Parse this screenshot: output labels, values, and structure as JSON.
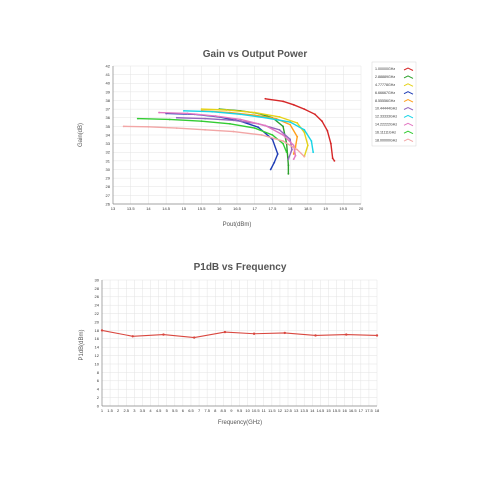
{
  "colors": {
    "grid": "#e3e3e3",
    "axis": "#888888",
    "title": "#555555"
  },
  "chart_data": [
    {
      "type": "line",
      "title": "Gain vs Output Power",
      "xlabel": "Pout(dBm)",
      "ylabel": "Gain(dB)",
      "xlim": [
        13,
        20
      ],
      "ylim": [
        26,
        42
      ],
      "x_ticks": [
        "13",
        "13.5",
        "14",
        "14.5",
        "15",
        "15.5",
        "16",
        "16.5",
        "17",
        "17.5",
        "18",
        "18.5",
        "19",
        "19.5",
        "20"
      ],
      "y_ticks": [
        "26",
        "27",
        "28",
        "29",
        "30",
        "31",
        "32",
        "33",
        "34",
        "35",
        "36",
        "37",
        "38",
        "39",
        "40",
        "41",
        "42"
      ],
      "legend_position": "right",
      "series": [
        {
          "name": "1.00000GHz",
          "color": "#d62728",
          "points": [
            [
              17.3,
              38.2
            ],
            [
              17.8,
              37.9
            ],
            [
              18.1,
              37.5
            ],
            [
              18.4,
              37.0
            ],
            [
              18.7,
              36.4
            ],
            [
              18.9,
              35.6
            ],
            [
              19.05,
              34.5
            ],
            [
              19.15,
              33.0
            ],
            [
              19.2,
              31.3
            ],
            [
              19.25,
              31.0
            ]
          ]
        },
        {
          "name": "2.88889GHz",
          "color": "#2ca02c",
          "points": [
            [
              16.0,
              37.0
            ],
            [
              16.6,
              36.8
            ],
            [
              17.1,
              36.5
            ],
            [
              17.5,
              36.0
            ],
            [
              17.8,
              35.0
            ],
            [
              17.9,
              33.0
            ],
            [
              17.95,
              30.5
            ],
            [
              17.95,
              29.5
            ]
          ]
        },
        {
          "name": "4.77778GHz",
          "color": "#e5d21a",
          "points": [
            [
              15.5,
              37.0
            ],
            [
              16.2,
              36.9
            ],
            [
              17.0,
              36.6
            ],
            [
              17.7,
              36.1
            ],
            [
              18.2,
              35.4
            ],
            [
              18.4,
              34.3
            ],
            [
              18.5,
              32.8
            ],
            [
              18.4,
              31.5
            ]
          ]
        },
        {
          "name": "6.66667GHz",
          "color": "#1f3db5",
          "points": [
            [
              14.5,
              36.5
            ],
            [
              15.3,
              36.4
            ],
            [
              16.0,
              36.1
            ],
            [
              16.6,
              35.6
            ],
            [
              17.1,
              34.9
            ],
            [
              17.5,
              33.5
            ],
            [
              17.65,
              31.8
            ],
            [
              17.55,
              30.8
            ],
            [
              17.45,
              30.0
            ]
          ]
        },
        {
          "name": "8.55556GHz",
          "color": "#ff9f1c",
          "points": [
            [
              15.5,
              36.8
            ],
            [
              16.3,
              36.6
            ],
            [
              17.0,
              36.3
            ],
            [
              17.6,
              35.9
            ],
            [
              18.0,
              35.2
            ],
            [
              18.2,
              33.8
            ],
            [
              18.15,
              32.6
            ],
            [
              18.1,
              31.8
            ]
          ]
        },
        {
          "name": "10.44444GHz",
          "color": "#9467bd",
          "points": [
            [
              14.8,
              36.0
            ],
            [
              15.6,
              35.9
            ],
            [
              16.4,
              35.7
            ],
            [
              17.1,
              35.3
            ],
            [
              17.7,
              34.6
            ],
            [
              18.0,
              33.5
            ],
            [
              18.05,
              32.3
            ],
            [
              17.95,
              31.2
            ]
          ]
        },
        {
          "name": "12.33333GHz",
          "color": "#17d4e6",
          "points": [
            [
              15.0,
              36.8
            ],
            [
              15.8,
              36.7
            ],
            [
              16.6,
              36.4
            ],
            [
              17.3,
              36.0
            ],
            [
              18.0,
              35.5
            ],
            [
              18.4,
              34.6
            ],
            [
              18.6,
              33.3
            ],
            [
              18.65,
              32.0
            ]
          ]
        },
        {
          "name": "14.22222GHz",
          "color": "#e377c2",
          "points": [
            [
              14.3,
              36.6
            ],
            [
              15.1,
              36.5
            ],
            [
              15.9,
              36.2
            ],
            [
              16.6,
              35.8
            ],
            [
              17.3,
              35.1
            ],
            [
              17.8,
              34.0
            ],
            [
              18.1,
              32.8
            ],
            [
              18.15,
              31.6
            ],
            [
              18.1,
              31.2
            ]
          ]
        },
        {
          "name": "16.11111GHz",
          "color": "#33cc33",
          "points": [
            [
              13.7,
              35.9
            ],
            [
              14.6,
              35.8
            ],
            [
              15.5,
              35.6
            ],
            [
              16.3,
              35.3
            ],
            [
              17.0,
              34.8
            ],
            [
              17.5,
              34.0
            ],
            [
              17.8,
              33.0
            ],
            [
              17.9,
              32.0
            ]
          ]
        },
        {
          "name": "18.00000GHz",
          "color": "#f2a6a6",
          "points": [
            [
              13.3,
              35.0
            ],
            [
              14.0,
              34.95
            ],
            [
              14.8,
              34.8
            ],
            [
              15.6,
              34.6
            ],
            [
              16.4,
              34.4
            ],
            [
              17.2,
              34.0
            ],
            [
              17.8,
              33.3
            ],
            [
              18.2,
              32.3
            ],
            [
              18.4,
              31.5
            ]
          ]
        }
      ]
    },
    {
      "type": "line",
      "title": "P1dB vs Frequency",
      "xlabel": "Frequency(GHz)",
      "ylabel": "P1dB(dBm)",
      "xlim": [
        1,
        18
      ],
      "ylim": [
        0,
        30
      ],
      "x_ticks": [
        "1",
        "1.5",
        "2",
        "2.5",
        "3",
        "3.5",
        "4",
        "4.5",
        "5",
        "5.5",
        "6",
        "6.5",
        "7",
        "7.5",
        "8",
        "8.5",
        "9",
        "9.5",
        "10",
        "10.5",
        "11",
        "11.5",
        "12",
        "12.5",
        "13",
        "13.5",
        "14",
        "14.5",
        "15",
        "15.5",
        "16",
        "16.5",
        "17",
        "17.5",
        "18"
      ],
      "y_ticks": [
        "0",
        "2",
        "4",
        "6",
        "8",
        "10",
        "12",
        "14",
        "16",
        "18",
        "20",
        "22",
        "24",
        "26",
        "28",
        "30"
      ],
      "series": [
        {
          "color": "#d9473f",
          "points": [
            [
              1,
              18.0
            ],
            [
              2.9,
              16.6
            ],
            [
              4.8,
              17.0
            ],
            [
              6.7,
              16.3
            ],
            [
              8.6,
              17.6
            ],
            [
              10.4,
              17.2
            ],
            [
              12.3,
              17.4
            ],
            [
              14.2,
              16.8
            ],
            [
              16.1,
              17.0
            ],
            [
              18.0,
              16.8
            ]
          ]
        }
      ]
    }
  ]
}
